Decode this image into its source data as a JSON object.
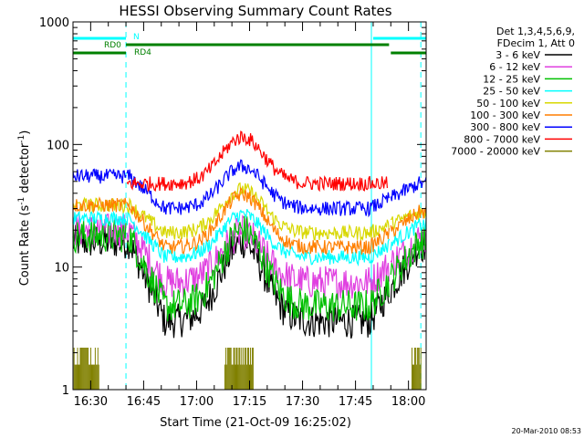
{
  "chart_data": {
    "type": "line",
    "title": "HESSI Observing Summary Count Rates",
    "xlabel": "Start Time (21-Oct-09 16:25:02)",
    "ylabel": "Count Rate (s-1 detector-1)",
    "yscale": "log",
    "ylim": [
      1,
      1000
    ],
    "xlim_minutes_after_1625": [
      0,
      100
    ],
    "x_ticks": [
      {
        "t": 5,
        "label": "16:30"
      },
      {
        "t": 20,
        "label": "16:45"
      },
      {
        "t": 35,
        "label": "17:00"
      },
      {
        "t": 50,
        "label": "17:15"
      },
      {
        "t": 65,
        "label": "17:30"
      },
      {
        "t": 80,
        "label": "17:45"
      },
      {
        "t": 95,
        "label": "18:00"
      }
    ],
    "y_ticks": [
      {
        "v": 1,
        "label": "1"
      },
      {
        "v": 10,
        "label": "10"
      },
      {
        "v": 100,
        "label": "100"
      },
      {
        "v": 1000,
        "label": "1000"
      }
    ],
    "legend": {
      "position": "right",
      "header": [
        "Det 1,3,4,5,6,9,",
        "FDecim 1, Att 0"
      ],
      "entries": [
        {
          "label": "3 - 6 keV",
          "color": "#000000"
        },
        {
          "label": "6 - 12 keV",
          "color": "#e040e0"
        },
        {
          "label": "12 - 25 keV",
          "color": "#00c000"
        },
        {
          "label": "25 - 50 keV",
          "color": "#00ffff"
        },
        {
          "label": "50 - 100 keV",
          "color": "#d8d800"
        },
        {
          "label": "100 - 300 keV",
          "color": "#ff7f00"
        },
        {
          "label": "300 - 800 keV",
          "color": "#0000ff"
        },
        {
          "label": "800 - 7000 keV",
          "color": "#ff0000"
        },
        {
          "label": "7000 - 20000 keV",
          "color": "#808000"
        }
      ]
    },
    "series": [
      {
        "name": "3 - 6 keV",
        "color": "#000000",
        "valley": 3.6,
        "peak": 16,
        "preValley": 16,
        "postValley": 15
      },
      {
        "name": "6 - 12 keV",
        "color": "#e040e0",
        "valley": 7.5,
        "peak": 19,
        "preValley": 20,
        "postValley": 17
      },
      {
        "name": "12 - 25 keV",
        "color": "#00c000",
        "valley": 4.8,
        "peak": 20,
        "preValley": 18,
        "postValley": 16
      },
      {
        "name": "25 - 50 keV",
        "color": "#00ffff",
        "valley": 12,
        "peak": 27,
        "preValley": 25,
        "postValley": 22
      },
      {
        "name": "50 - 100 keV",
        "color": "#d8d800",
        "valley": 19,
        "peak": 43,
        "preValley": 32,
        "postValley": 28
      },
      {
        "name": "100 - 300 keV",
        "color": "#ff7f00",
        "valley": 14.5,
        "peak": 39,
        "preValley": 32,
        "postValley": 28
      },
      {
        "name": "300 - 800 keV",
        "color": "#0000ff",
        "valley": 30,
        "peak": 66,
        "preValley": 55,
        "postValley": 48
      },
      {
        "name": "800 - 7000 keV",
        "color": "#ff0000",
        "valley": 48,
        "peak": 115,
        "preValley": null,
        "postValley": null
      },
      {
        "name": "7000 - 20000 keV",
        "color": "#808000",
        "valley": 1,
        "peak": 2.2,
        "preValley": 2.2,
        "postValley": 1
      }
    ],
    "saa_lines": [
      {
        "t": 0,
        "style": "solid"
      },
      {
        "t": 15,
        "style": "dashed"
      },
      {
        "t": 84.5,
        "style": "solid"
      },
      {
        "t": 98.5,
        "style": "dashed"
      }
    ],
    "flag_bars": [
      {
        "name": "N",
        "label": "N",
        "color": "#00ffff",
        "ranges": [
          [
            0,
            15
          ],
          [
            85,
            100
          ]
        ]
      },
      {
        "name": "RD0",
        "label": "RD0",
        "color": "#008000",
        "ranges": [
          [
            15,
            89.5
          ]
        ]
      },
      {
        "name": "RD4",
        "label": "RD4",
        "color": "#008000",
        "ranges": [
          [
            0,
            15
          ],
          [
            90,
            100
          ]
        ]
      }
    ],
    "timestamp": "20-Mar-2010 08:53"
  }
}
